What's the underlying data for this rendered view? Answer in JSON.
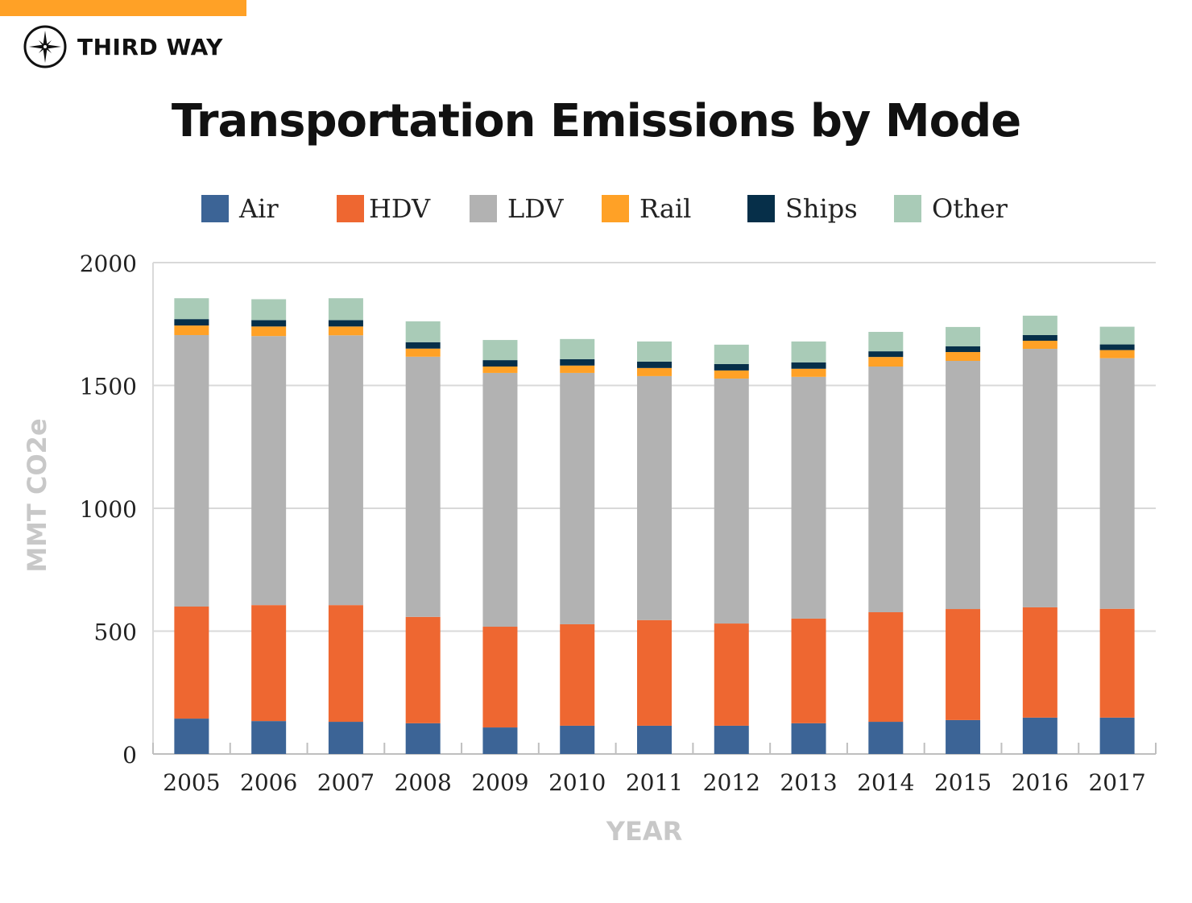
{
  "brand": {
    "name": "THIRD WAY",
    "accent_color": "#FFA126"
  },
  "chart_data": {
    "type": "bar",
    "stacked": true,
    "title": "Transportation Emissions by Mode",
    "xlabel": "YEAR",
    "ylabel": "MMT CO2e",
    "ylim": [
      0,
      2000
    ],
    "yticks": [
      0,
      500,
      1000,
      1500,
      2000
    ],
    "grid": true,
    "legend_position": "top",
    "categories": [
      "2005",
      "2006",
      "2007",
      "2008",
      "2009",
      "2010",
      "2011",
      "2012",
      "2013",
      "2014",
      "2015",
      "2016",
      "2017"
    ],
    "series": [
      {
        "name": "Air",
        "color": "#3C6496",
        "values": [
          144,
          134,
          131,
          125,
          108,
          115,
          115,
          115,
          125,
          131,
          138,
          148,
          148
        ]
      },
      {
        "name": "HDV",
        "color": "#EE6731",
        "values": [
          456,
          472,
          475,
          433,
          410,
          413,
          430,
          416,
          426,
          446,
          452,
          449,
          443
        ]
      },
      {
        "name": "LDV",
        "color": "#B2B2B2",
        "values": [
          1105,
          1095,
          1098,
          1059,
          1033,
          1023,
          993,
          997,
          984,
          1000,
          1010,
          1052,
          1020
        ]
      },
      {
        "name": "Rail",
        "color": "#FFA126",
        "values": [
          39,
          39,
          36,
          33,
          26,
          30,
          33,
          33,
          33,
          39,
          36,
          33,
          33
        ]
      },
      {
        "name": "Ships",
        "color": "#062F49",
        "values": [
          26,
          26,
          26,
          26,
          26,
          26,
          26,
          26,
          26,
          23,
          23,
          23,
          23
        ]
      },
      {
        "name": "Other",
        "color": "#A9CBB7",
        "values": [
          85,
          85,
          89,
          85,
          82,
          82,
          82,
          79,
          85,
          79,
          79,
          79,
          72
        ]
      }
    ]
  }
}
